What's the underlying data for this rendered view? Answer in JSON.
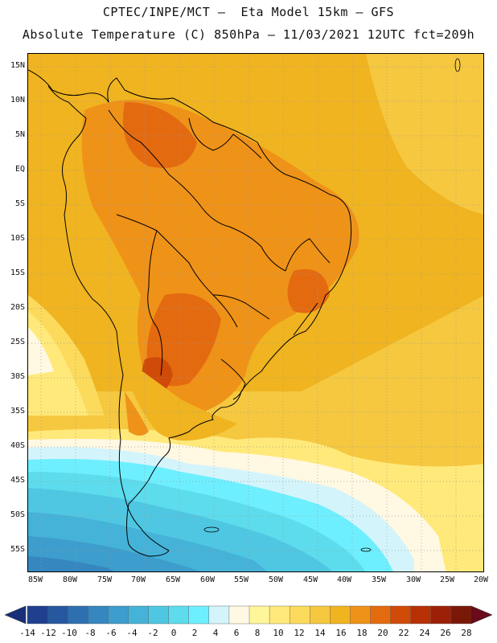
{
  "header": {
    "line1": "CPTEC/INPE/MCT –  Eta Model 15km – GFS",
    "line2": "Absolute Temperature (C) 850hPa – 11/03/2021 12UTC fct=209h"
  },
  "map": {
    "region": "South America",
    "lat_labels": [
      "15N",
      "10N",
      "5N",
      "EQ",
      "5S",
      "10S",
      "15S",
      "20S",
      "25S",
      "30S",
      "35S",
      "40S",
      "45S",
      "50S",
      "55S"
    ],
    "lon_labels": [
      "85W",
      "80W",
      "75W",
      "70W",
      "65W",
      "60W",
      "55W",
      "50W",
      "45W",
      "40W",
      "35W",
      "30W",
      "25W",
      "20W"
    ]
  },
  "colorbar": {
    "labels": [
      "-14",
      "-12",
      "-10",
      "-8",
      "-6",
      "-4",
      "-2",
      "0",
      "2",
      "4",
      "6",
      "8",
      "10",
      "12",
      "14",
      "16",
      "18",
      "20",
      "22",
      "24",
      "26",
      "28"
    ],
    "colors": [
      "#1f3f8f",
      "#26589f",
      "#2e6faf",
      "#3686bf",
      "#3d9dcc",
      "#45b2d8",
      "#4fc7e2",
      "#5cdcec",
      "#6eefff",
      "#d4f4fb",
      "#fff8e2",
      "#fff59a",
      "#ffe97a",
      "#fcda5c",
      "#f5c840",
      "#f0b420",
      "#ef9218",
      "#e46a10",
      "#d04a08",
      "#b83006",
      "#9c2008",
      "#7a1808"
    ]
  }
}
